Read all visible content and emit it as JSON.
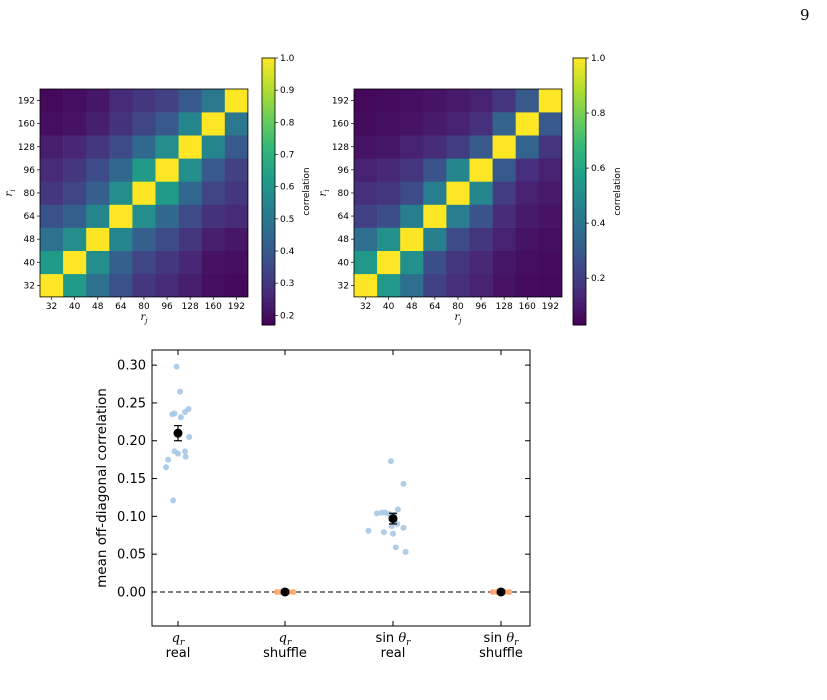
{
  "page_number": "9",
  "chart_data": [
    {
      "type": "heatmap",
      "xlabel": "r_j",
      "ylabel": "r_i",
      "x_tick_labels": [
        "32",
        "40",
        "48",
        "64",
        "80",
        "96",
        "128",
        "160",
        "192"
      ],
      "y_tick_labels": [
        "32",
        "40",
        "48",
        "64",
        "80",
        "96",
        "128",
        "160",
        "192"
      ],
      "colorbar": {
        "label": "correlation",
        "range": [
          0.17,
          1.0
        ],
        "ticks": [
          "0.2",
          "0.3",
          "0.4",
          "0.5",
          "0.6",
          "0.7",
          "0.8",
          "0.9",
          "1.0"
        ],
        "tick_values": [
          0.2,
          0.3,
          0.4,
          0.5,
          0.6,
          0.7,
          0.8,
          0.9,
          1.0
        ]
      },
      "colormap": "viridis",
      "values": [
        [
          1.0,
          0.62,
          0.48,
          0.38,
          0.3,
          0.27,
          0.24,
          0.2,
          0.19
        ],
        [
          0.62,
          1.0,
          0.58,
          0.42,
          0.34,
          0.3,
          0.26,
          0.21,
          0.2
        ],
        [
          0.48,
          0.58,
          1.0,
          0.55,
          0.42,
          0.36,
          0.3,
          0.24,
          0.22
        ],
        [
          0.38,
          0.42,
          0.55,
          1.0,
          0.58,
          0.45,
          0.36,
          0.29,
          0.27
        ],
        [
          0.3,
          0.34,
          0.42,
          0.58,
          1.0,
          0.62,
          0.45,
          0.34,
          0.3
        ],
        [
          0.27,
          0.3,
          0.36,
          0.45,
          0.62,
          1.0,
          0.58,
          0.4,
          0.33
        ],
        [
          0.24,
          0.26,
          0.3,
          0.36,
          0.45,
          0.58,
          1.0,
          0.55,
          0.4
        ],
        [
          0.2,
          0.21,
          0.24,
          0.29,
          0.34,
          0.4,
          0.55,
          1.0,
          0.5
        ],
        [
          0.19,
          0.2,
          0.22,
          0.27,
          0.3,
          0.33,
          0.4,
          0.5,
          1.0
        ]
      ]
    },
    {
      "type": "heatmap",
      "xlabel": "r_j",
      "ylabel": "r_i",
      "x_tick_labels": [
        "32",
        "40",
        "48",
        "64",
        "80",
        "96",
        "128",
        "160",
        "192"
      ],
      "y_tick_labels": [
        "32",
        "40",
        "48",
        "64",
        "80",
        "96",
        "128",
        "160",
        "192"
      ],
      "colorbar": {
        "label": "correlation",
        "range": [
          0.03,
          1.0
        ],
        "ticks": [
          "0.2",
          "0.4",
          "0.6",
          "0.8",
          "1.0"
        ],
        "tick_values": [
          0.2,
          0.4,
          0.6,
          0.8,
          1.0
        ]
      },
      "colormap": "viridis",
      "values": [
        [
          1.0,
          0.55,
          0.38,
          0.22,
          0.16,
          0.12,
          0.08,
          0.06,
          0.05
        ],
        [
          0.55,
          1.0,
          0.52,
          0.26,
          0.18,
          0.14,
          0.09,
          0.07,
          0.06
        ],
        [
          0.38,
          0.52,
          1.0,
          0.45,
          0.25,
          0.18,
          0.12,
          0.08,
          0.07
        ],
        [
          0.22,
          0.26,
          0.45,
          1.0,
          0.44,
          0.28,
          0.15,
          0.1,
          0.08
        ],
        [
          0.16,
          0.18,
          0.25,
          0.44,
          1.0,
          0.48,
          0.2,
          0.12,
          0.1
        ],
        [
          0.12,
          0.14,
          0.18,
          0.28,
          0.48,
          1.0,
          0.3,
          0.16,
          0.12
        ],
        [
          0.08,
          0.09,
          0.12,
          0.15,
          0.2,
          0.3,
          1.0,
          0.34,
          0.18
        ],
        [
          0.06,
          0.07,
          0.08,
          0.1,
          0.12,
          0.16,
          0.34,
          1.0,
          0.3
        ],
        [
          0.05,
          0.06,
          0.07,
          0.08,
          0.1,
          0.12,
          0.18,
          0.3,
          1.0
        ]
      ]
    },
    {
      "type": "scatter",
      "ylabel": "mean off-diagonal correlation",
      "ylim": [
        -0.045,
        0.32
      ],
      "y_ticks": [
        0.0,
        0.05,
        0.1,
        0.15,
        0.2,
        0.25,
        0.3
      ],
      "y_tick_labels": [
        "0.00",
        "0.05",
        "0.10",
        "0.15",
        "0.20",
        "0.25",
        "0.30"
      ],
      "categories": [
        {
          "symbol": "q",
          "sub": "r",
          "line2": "real"
        },
        {
          "symbol": "q",
          "sub": "r",
          "line2": "shuffle"
        },
        {
          "symbol": "sin θ",
          "sub": "r",
          "line2": "real"
        },
        {
          "symbol": "sin θ",
          "sub": "r",
          "line2": "shuffle"
        }
      ],
      "reference_line": {
        "y": 0.0,
        "style": "dashed"
      },
      "colors": {
        "real_points": "#a6c8e3",
        "shuffle_points": "#ffa66a",
        "mean": "#000000"
      },
      "series": [
        {
          "category": 0,
          "points": [
            {
              "dx": -0.02,
              "y": 0.298
            },
            {
              "dx": 0.03,
              "y": 0.265
            },
            {
              "dx": 0.15,
              "y": 0.242
            },
            {
              "dx": 0.1,
              "y": 0.238
            },
            {
              "dx": -0.05,
              "y": 0.236
            },
            {
              "dx": -0.08,
              "y": 0.235
            },
            {
              "dx": 0.04,
              "y": 0.231
            },
            {
              "dx": 0.16,
              "y": 0.205
            },
            {
              "dx": -0.05,
              "y": 0.186
            },
            {
              "dx": 0.1,
              "y": 0.186
            },
            {
              "dx": 0.0,
              "y": 0.183
            },
            {
              "dx": 0.11,
              "y": 0.179
            },
            {
              "dx": -0.14,
              "y": 0.175
            },
            {
              "dx": -0.17,
              "y": 0.165
            },
            {
              "dx": -0.07,
              "y": 0.121
            }
          ],
          "mean": 0.21,
          "error": 0.01
        },
        {
          "category": 1,
          "points": [
            {
              "dx": -0.12,
              "y": 0.0
            },
            {
              "dx": -0.06,
              "y": 0.0
            },
            {
              "dx": 0.0,
              "y": 0.0
            },
            {
              "dx": 0.06,
              "y": 0.0
            },
            {
              "dx": 0.12,
              "y": 0.0
            }
          ],
          "mean": 0.0,
          "error": 0.0
        },
        {
          "category": 2,
          "points": [
            {
              "dx": -0.03,
              "y": 0.173
            },
            {
              "dx": 0.15,
              "y": 0.143
            },
            {
              "dx": 0.07,
              "y": 0.109
            },
            {
              "dx": -0.23,
              "y": 0.104
            },
            {
              "dx": -0.16,
              "y": 0.105
            },
            {
              "dx": -0.11,
              "y": 0.105
            },
            {
              "dx": -0.05,
              "y": 0.103
            },
            {
              "dx": 0.02,
              "y": 0.102
            },
            {
              "dx": 0.06,
              "y": 0.09
            },
            {
              "dx": -0.02,
              "y": 0.087
            },
            {
              "dx": 0.15,
              "y": 0.085
            },
            {
              "dx": -0.35,
              "y": 0.081
            },
            {
              "dx": -0.13,
              "y": 0.079
            },
            {
              "dx": 0.0,
              "y": 0.077
            },
            {
              "dx": 0.04,
              "y": 0.059
            },
            {
              "dx": 0.18,
              "y": 0.053
            }
          ],
          "mean": 0.097,
          "error": 0.007
        },
        {
          "category": 3,
          "points": [
            {
              "dx": -0.12,
              "y": 0.0
            },
            {
              "dx": -0.06,
              "y": 0.0
            },
            {
              "dx": 0.0,
              "y": 0.0
            },
            {
              "dx": 0.06,
              "y": 0.0
            },
            {
              "dx": 0.12,
              "y": 0.0
            }
          ],
          "mean": 0.0,
          "error": 0.0
        }
      ]
    }
  ]
}
